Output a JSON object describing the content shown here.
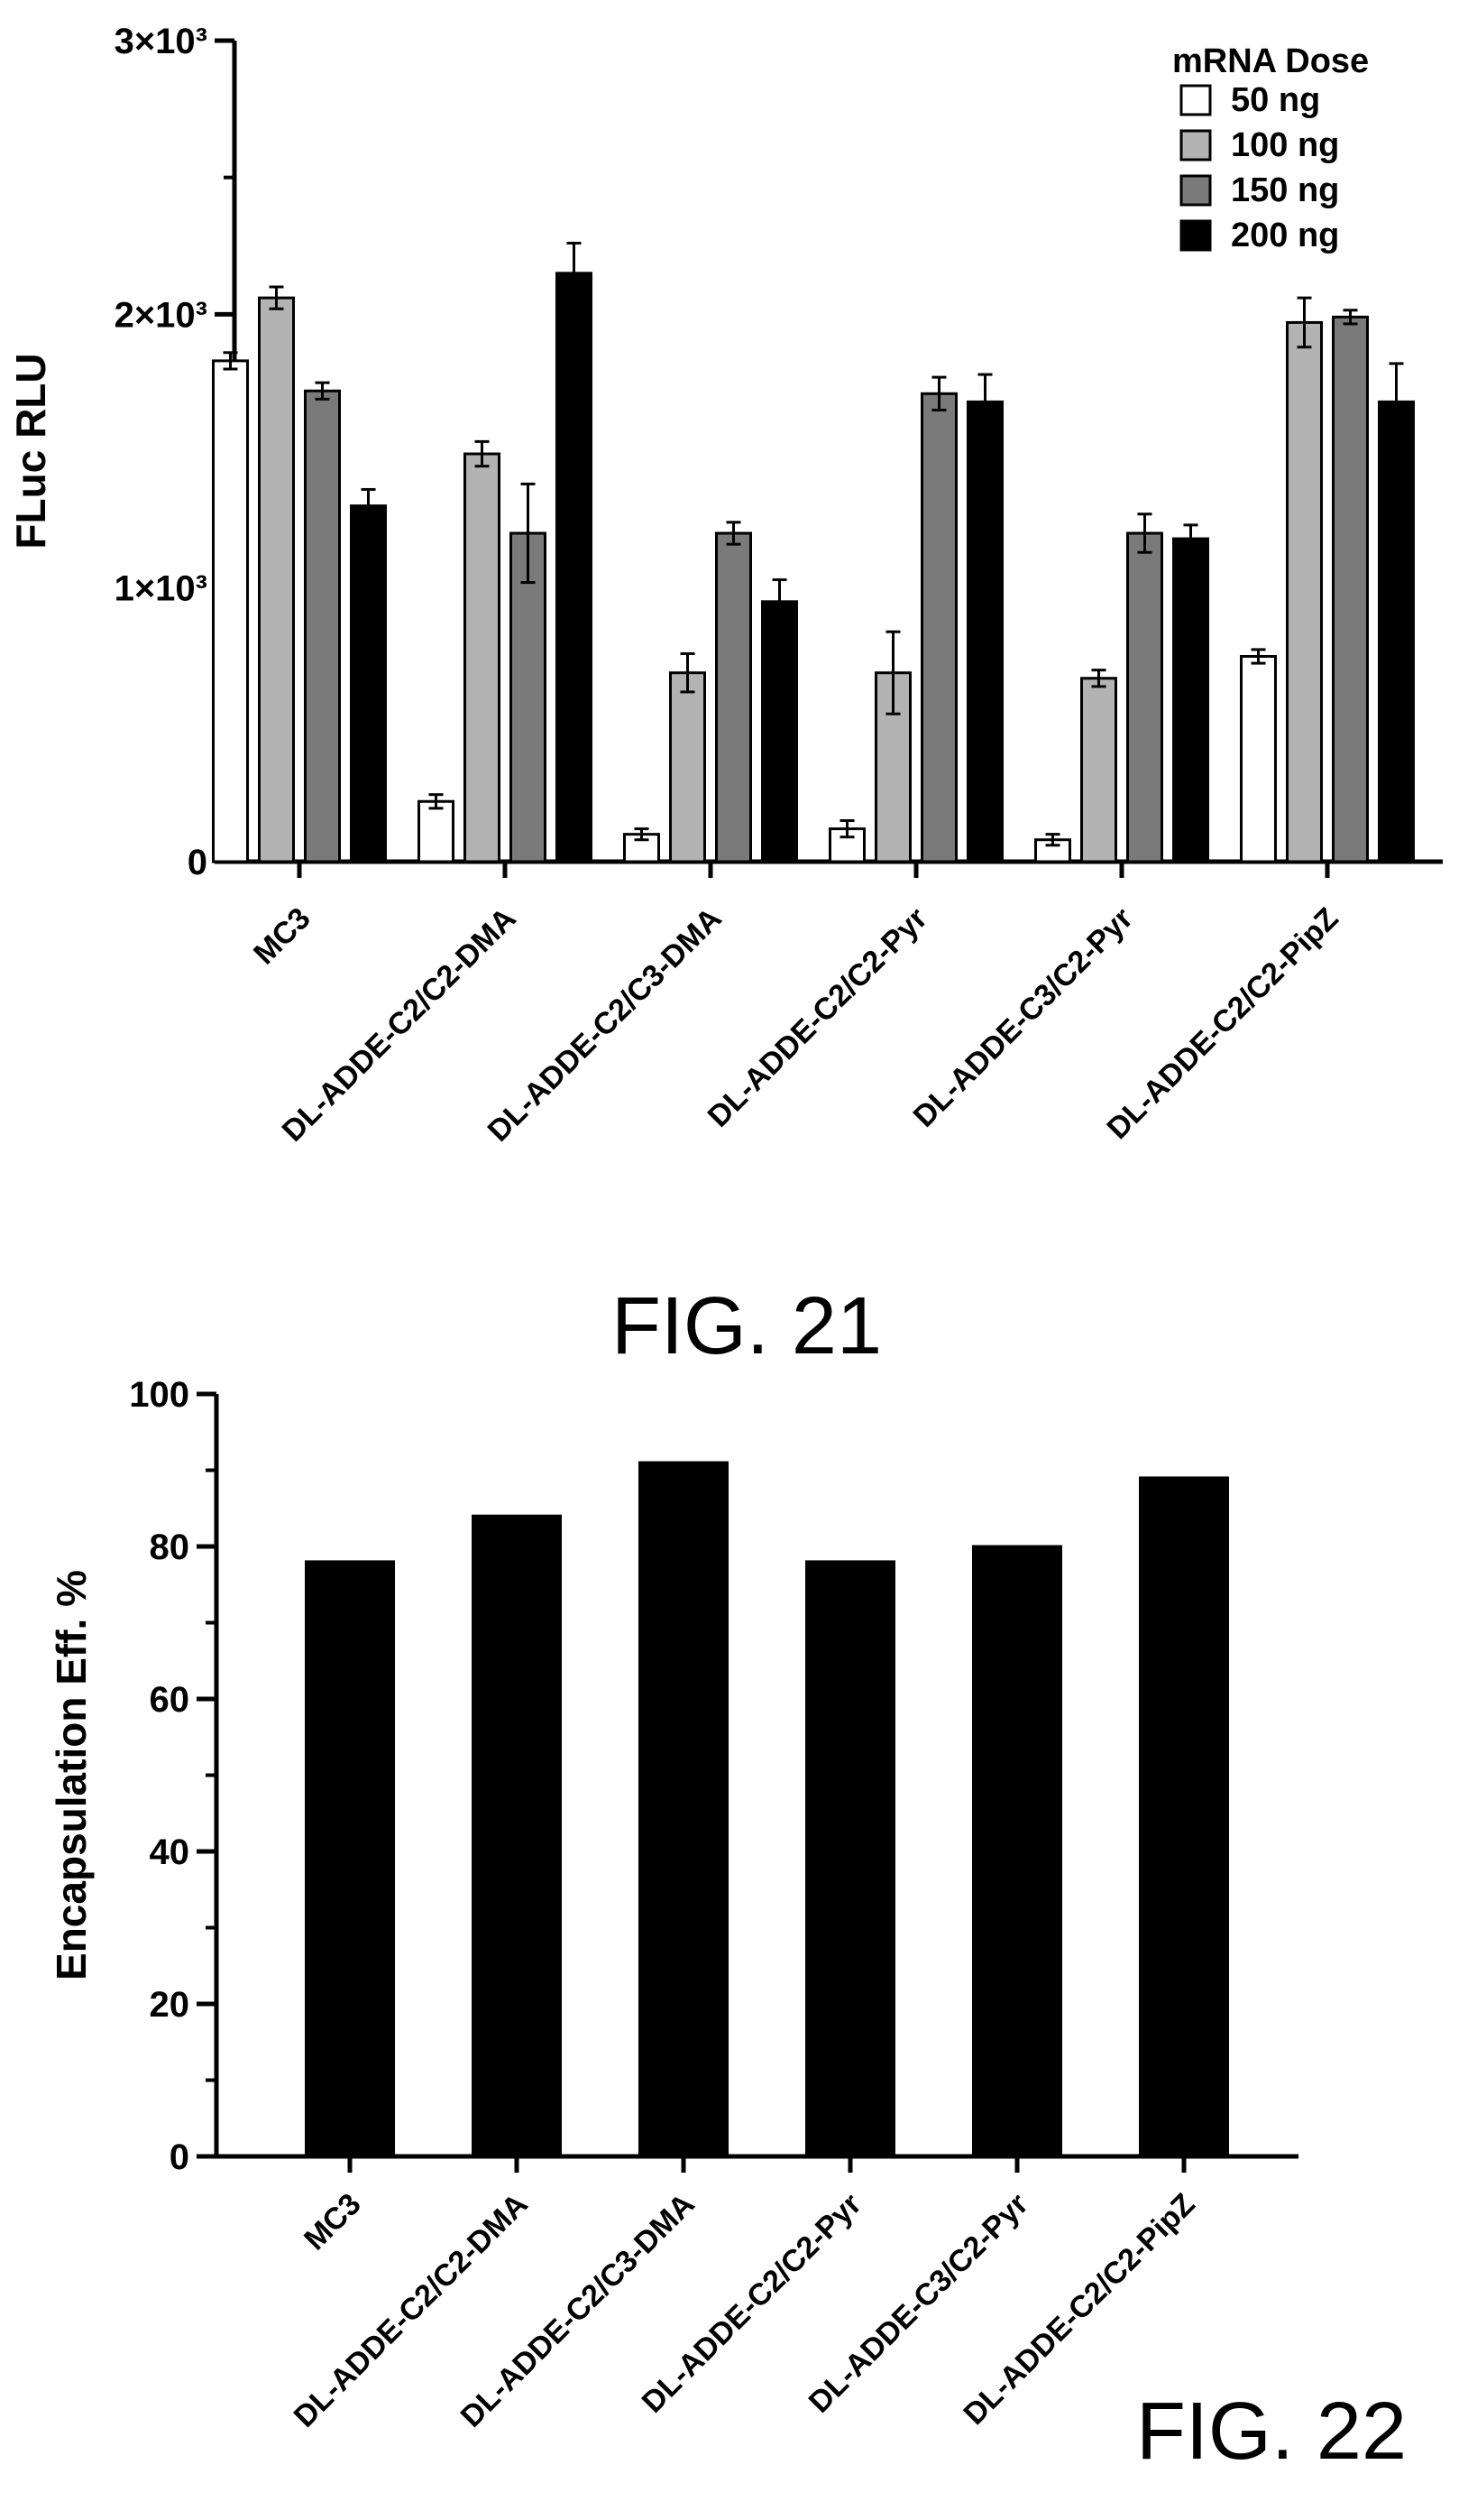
{
  "chart_data": [
    {
      "type": "bar",
      "figure_label": "FIG. 21",
      "ylabel": "FLuc RLU",
      "ylim": [
        0,
        3000
      ],
      "yticks": [
        {
          "value": 0,
          "label": "0"
        },
        {
          "value": 1000,
          "label": "1×10³"
        },
        {
          "value": 2000,
          "label": "2×10³"
        },
        {
          "value": 3000,
          "label": "3×10³"
        }
      ],
      "legend_title": "mRNA Dose",
      "legend_position": "top-right",
      "categories": [
        "MC3",
        "DL-ADDE-C2/C2-DMA",
        "DL-ADDE-C2/C3-DMA",
        "DL-ADDE-C2/C2-Pyr",
        "DL-ADDE-C3/C2-Pyr",
        "DL-ADDE-C2/C2-PipZ"
      ],
      "series": [
        {
          "name": "50 ng",
          "color": "#ffffff",
          "values": [
            1830,
            220,
            100,
            120,
            80,
            750
          ],
          "errors": [
            30,
            25,
            20,
            30,
            20,
            25
          ]
        },
        {
          "name": "100 ng",
          "color": "#b3b3b3",
          "values": [
            2060,
            1490,
            690,
            690,
            670,
            1970
          ],
          "errors": [
            40,
            45,
            70,
            150,
            30,
            90
          ]
        },
        {
          "name": "150 ng",
          "color": "#7a7a7a",
          "values": [
            1720,
            1200,
            1200,
            1710,
            1200,
            1990
          ],
          "errors": [
            30,
            180,
            40,
            60,
            70,
            25
          ]
        },
        {
          "name": "200 ng",
          "color": "#000000",
          "values": [
            1300,
            2150,
            950,
            1680,
            1180,
            1680
          ],
          "errors": [
            60,
            110,
            80,
            100,
            50,
            140
          ]
        }
      ]
    },
    {
      "type": "bar",
      "figure_label": "FIG. 22",
      "ylabel": "Encapsulation Eff. %",
      "ylim": [
        0,
        100
      ],
      "yticks": [
        {
          "value": 0,
          "label": "0"
        },
        {
          "value": 20,
          "label": "20"
        },
        {
          "value": 40,
          "label": "40"
        },
        {
          "value": 60,
          "label": "60"
        },
        {
          "value": 80,
          "label": "80"
        },
        {
          "value": 100,
          "label": "100"
        }
      ],
      "categories": [
        "MC3",
        "DL-ADDE-C2/C2-DMA",
        "DL-ADDE-C2/C3-DMA",
        "DL-ADDE-C2/C2-Pyr",
        "DL-ADDE-C3/C2-Pyr",
        "DL-ADDE-C2/C2-PipZ"
      ],
      "series": [
        {
          "color": "#000000",
          "values": [
            78,
            84,
            91,
            78,
            80,
            89
          ]
        }
      ]
    }
  ]
}
